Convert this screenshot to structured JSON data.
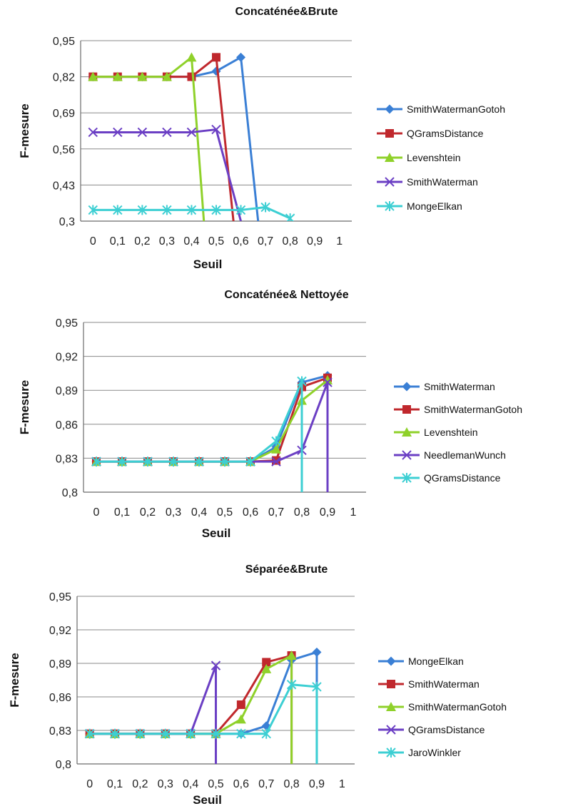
{
  "chart_data": [
    {
      "type": "line",
      "title": "Concaténée&Brute",
      "xlabel": "Seuil",
      "ylabel": "F-mesure",
      "x_ticks": [
        "0",
        "0,1",
        "0,2",
        "0,3",
        "0,4",
        "0,5",
        "0,6",
        "0,7",
        "0,8",
        "0,9",
        "1"
      ],
      "y_ticks": [
        "0,3",
        "0,43",
        "0,56",
        "0,69",
        "0,82",
        "0,95"
      ],
      "ylim": [
        0.3,
        0.95
      ],
      "grid": true,
      "legend_position": "right",
      "series": [
        {
          "name": "SmithWatermanGotoh",
          "color": "#3a7fd5",
          "marker": "diamond",
          "x": [
            0,
            0.1,
            0.2,
            0.3,
            0.4,
            0.5,
            0.6,
            0.67
          ],
          "y": [
            0.82,
            0.82,
            0.82,
            0.82,
            0.82,
            0.84,
            0.89,
            0.3
          ]
        },
        {
          "name": "QGramsDistance",
          "color": "#c0282d",
          "marker": "square",
          "x": [
            0,
            0.1,
            0.2,
            0.3,
            0.4,
            0.5,
            0.57
          ],
          "y": [
            0.82,
            0.82,
            0.82,
            0.82,
            0.82,
            0.89,
            0.3
          ]
        },
        {
          "name": "Levenshtein",
          "color": "#8fd12a",
          "marker": "triangle",
          "x": [
            0,
            0.1,
            0.2,
            0.3,
            0.4,
            0.45
          ],
          "y": [
            0.82,
            0.82,
            0.82,
            0.82,
            0.89,
            0.3
          ]
        },
        {
          "name": "SmithWaterman",
          "color": "#6b3fc4",
          "marker": "x",
          "x": [
            0,
            0.1,
            0.2,
            0.3,
            0.4,
            0.5,
            0.6
          ],
          "y": [
            0.62,
            0.62,
            0.62,
            0.62,
            0.62,
            0.63,
            0.3
          ]
        },
        {
          "name": "MongeElkan",
          "color": "#3dcfd3",
          "marker": "star",
          "x": [
            0,
            0.1,
            0.2,
            0.3,
            0.4,
            0.5,
            0.6,
            0.7,
            0.8
          ],
          "y": [
            0.34,
            0.34,
            0.34,
            0.34,
            0.34,
            0.34,
            0.34,
            0.35,
            0.31
          ]
        }
      ]
    },
    {
      "type": "line",
      "title": "Concaténée& Nettoyée",
      "xlabel": "Seuil",
      "ylabel": "F-mesure",
      "x_ticks": [
        "0",
        "0,1",
        "0,2",
        "0,3",
        "0,4",
        "0,5",
        "0,6",
        "0,7",
        "0,8",
        "0,9",
        "1"
      ],
      "y_ticks": [
        "0,8",
        "0,83",
        "0,86",
        "0,89",
        "0,92",
        "0,95"
      ],
      "ylim": [
        0.8,
        0.95
      ],
      "grid": true,
      "legend_position": "right",
      "series": [
        {
          "name": "SmithWaterman",
          "color": "#3a7fd5",
          "marker": "diamond",
          "x": [
            0,
            0.1,
            0.2,
            0.3,
            0.4,
            0.5,
            0.6,
            0.7,
            0.8,
            0.9
          ],
          "y": [
            0.827,
            0.827,
            0.827,
            0.827,
            0.827,
            0.827,
            0.827,
            0.84,
            0.897,
            0.903
          ]
        },
        {
          "name": "SmithWatermanGotoh",
          "color": "#c0282d",
          "marker": "square",
          "x": [
            0,
            0.1,
            0.2,
            0.3,
            0.4,
            0.5,
            0.6,
            0.7,
            0.8,
            0.9
          ],
          "y": [
            0.827,
            0.827,
            0.827,
            0.827,
            0.827,
            0.827,
            0.827,
            0.828,
            0.893,
            0.901
          ]
        },
        {
          "name": "Levenshtein",
          "color": "#8fd12a",
          "marker": "triangle",
          "x": [
            0,
            0.1,
            0.2,
            0.3,
            0.4,
            0.5,
            0.6,
            0.7,
            0.8,
            0.9
          ],
          "y": [
            0.827,
            0.827,
            0.827,
            0.827,
            0.827,
            0.827,
            0.827,
            0.838,
            0.881,
            0.899
          ]
        },
        {
          "name": "NeedlemanWunch",
          "color": "#6b3fc4",
          "marker": "x",
          "x": [
            0,
            0.1,
            0.2,
            0.3,
            0.4,
            0.5,
            0.6,
            0.7,
            0.8,
            0.9,
            0.9
          ],
          "y": [
            0.827,
            0.827,
            0.827,
            0.827,
            0.827,
            0.827,
            0.827,
            0.827,
            0.837,
            0.897,
            0.8
          ]
        },
        {
          "name": "QGramsDistance",
          "color": "#3dcfd3",
          "marker": "star",
          "x": [
            0,
            0.1,
            0.2,
            0.3,
            0.4,
            0.5,
            0.6,
            0.7,
            0.8,
            0.8
          ],
          "y": [
            0.827,
            0.827,
            0.827,
            0.827,
            0.827,
            0.827,
            0.827,
            0.845,
            0.898,
            0.8
          ]
        }
      ]
    },
    {
      "type": "line",
      "title": "Séparée&Brute",
      "xlabel": "Seuil",
      "ylabel": "F-mesure",
      "x_ticks": [
        "0",
        "0,1",
        "0,2",
        "0,3",
        "0,4",
        "0,5",
        "0,6",
        "0,7",
        "0,8",
        "0,9",
        "1"
      ],
      "y_ticks": [
        "0,8",
        "0,83",
        "0,86",
        "0,89",
        "0,92",
        "0,95"
      ],
      "ylim": [
        0.8,
        0.95
      ],
      "grid": true,
      "legend_position": "right",
      "series": [
        {
          "name": "MongeElkan",
          "color": "#3a7fd5",
          "marker": "diamond",
          "x": [
            0,
            0.1,
            0.2,
            0.3,
            0.4,
            0.5,
            0.6,
            0.7,
            0.8,
            0.9,
            0.9
          ],
          "y": [
            0.827,
            0.827,
            0.827,
            0.827,
            0.827,
            0.827,
            0.827,
            0.834,
            0.893,
            0.9,
            0.8
          ]
        },
        {
          "name": "SmithWaterman",
          "color": "#c0282d",
          "marker": "square",
          "x": [
            0,
            0.1,
            0.2,
            0.3,
            0.4,
            0.5,
            0.6,
            0.7,
            0.8,
            0.8
          ],
          "y": [
            0.827,
            0.827,
            0.827,
            0.827,
            0.827,
            0.827,
            0.853,
            0.891,
            0.897,
            0.8
          ]
        },
        {
          "name": "SmithWatermanGotoh",
          "color": "#8fd12a",
          "marker": "triangle",
          "x": [
            0,
            0.1,
            0.2,
            0.3,
            0.4,
            0.5,
            0.6,
            0.7,
            0.8,
            0.8
          ],
          "y": [
            0.827,
            0.827,
            0.827,
            0.827,
            0.827,
            0.827,
            0.84,
            0.885,
            0.897,
            0.8
          ]
        },
        {
          "name": "QGramsDistance",
          "color": "#6b3fc4",
          "marker": "x",
          "x": [
            0,
            0.1,
            0.2,
            0.3,
            0.4,
            0.5,
            0.5
          ],
          "y": [
            0.827,
            0.827,
            0.827,
            0.827,
            0.827,
            0.888,
            0.8
          ]
        },
        {
          "name": "JaroWinkler",
          "color": "#3dcfd3",
          "marker": "star",
          "x": [
            0,
            0.1,
            0.2,
            0.3,
            0.4,
            0.5,
            0.6,
            0.7,
            0.8,
            0.9,
            0.9
          ],
          "y": [
            0.827,
            0.827,
            0.827,
            0.827,
            0.827,
            0.827,
            0.827,
            0.827,
            0.871,
            0.869,
            0.8
          ]
        }
      ]
    }
  ]
}
